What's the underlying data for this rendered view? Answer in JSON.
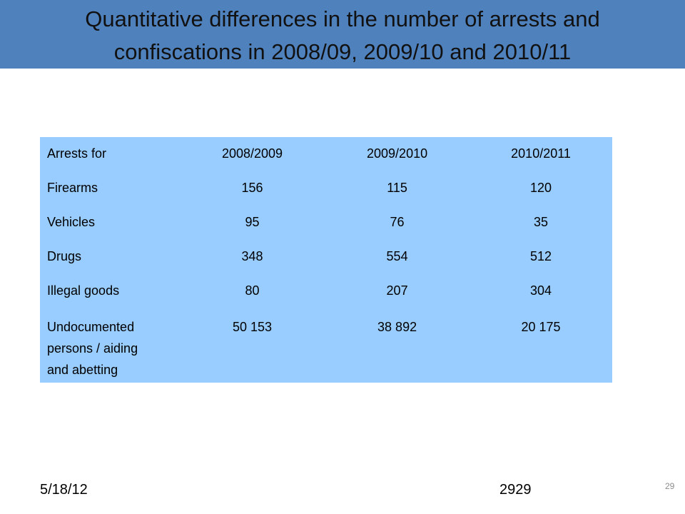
{
  "slide": {
    "title_line1": "Quantitative differences in the number of arrests and",
    "title_line2": "confiscations in 2008/09, 2009/10 and 2010/11"
  },
  "table": {
    "headers": [
      "Arrests for",
      "2008/2009",
      "2009/2010",
      "2010/2011"
    ],
    "rows": [
      {
        "label": "Firearms",
        "values": [
          "156",
          "115",
          "120"
        ]
      },
      {
        "label": "Vehicles",
        "values": [
          "95",
          "76",
          "35"
        ]
      },
      {
        "label": "Drugs",
        "values": [
          "348",
          "554",
          "512"
        ]
      },
      {
        "label": "Illegal goods",
        "values": [
          "80",
          "207",
          "304"
        ]
      },
      {
        "label_lines": [
          "Undocumented",
          "persons / aiding",
          "and abetting"
        ],
        "values": [
          "50 153",
          "38 892",
          "20 175"
        ]
      }
    ]
  },
  "footer": {
    "date": "5/18/12",
    "number": "2929",
    "slide_number": "29"
  },
  "colors": {
    "title_bar": "#4f81bd",
    "table_fill": "#99ccff"
  }
}
